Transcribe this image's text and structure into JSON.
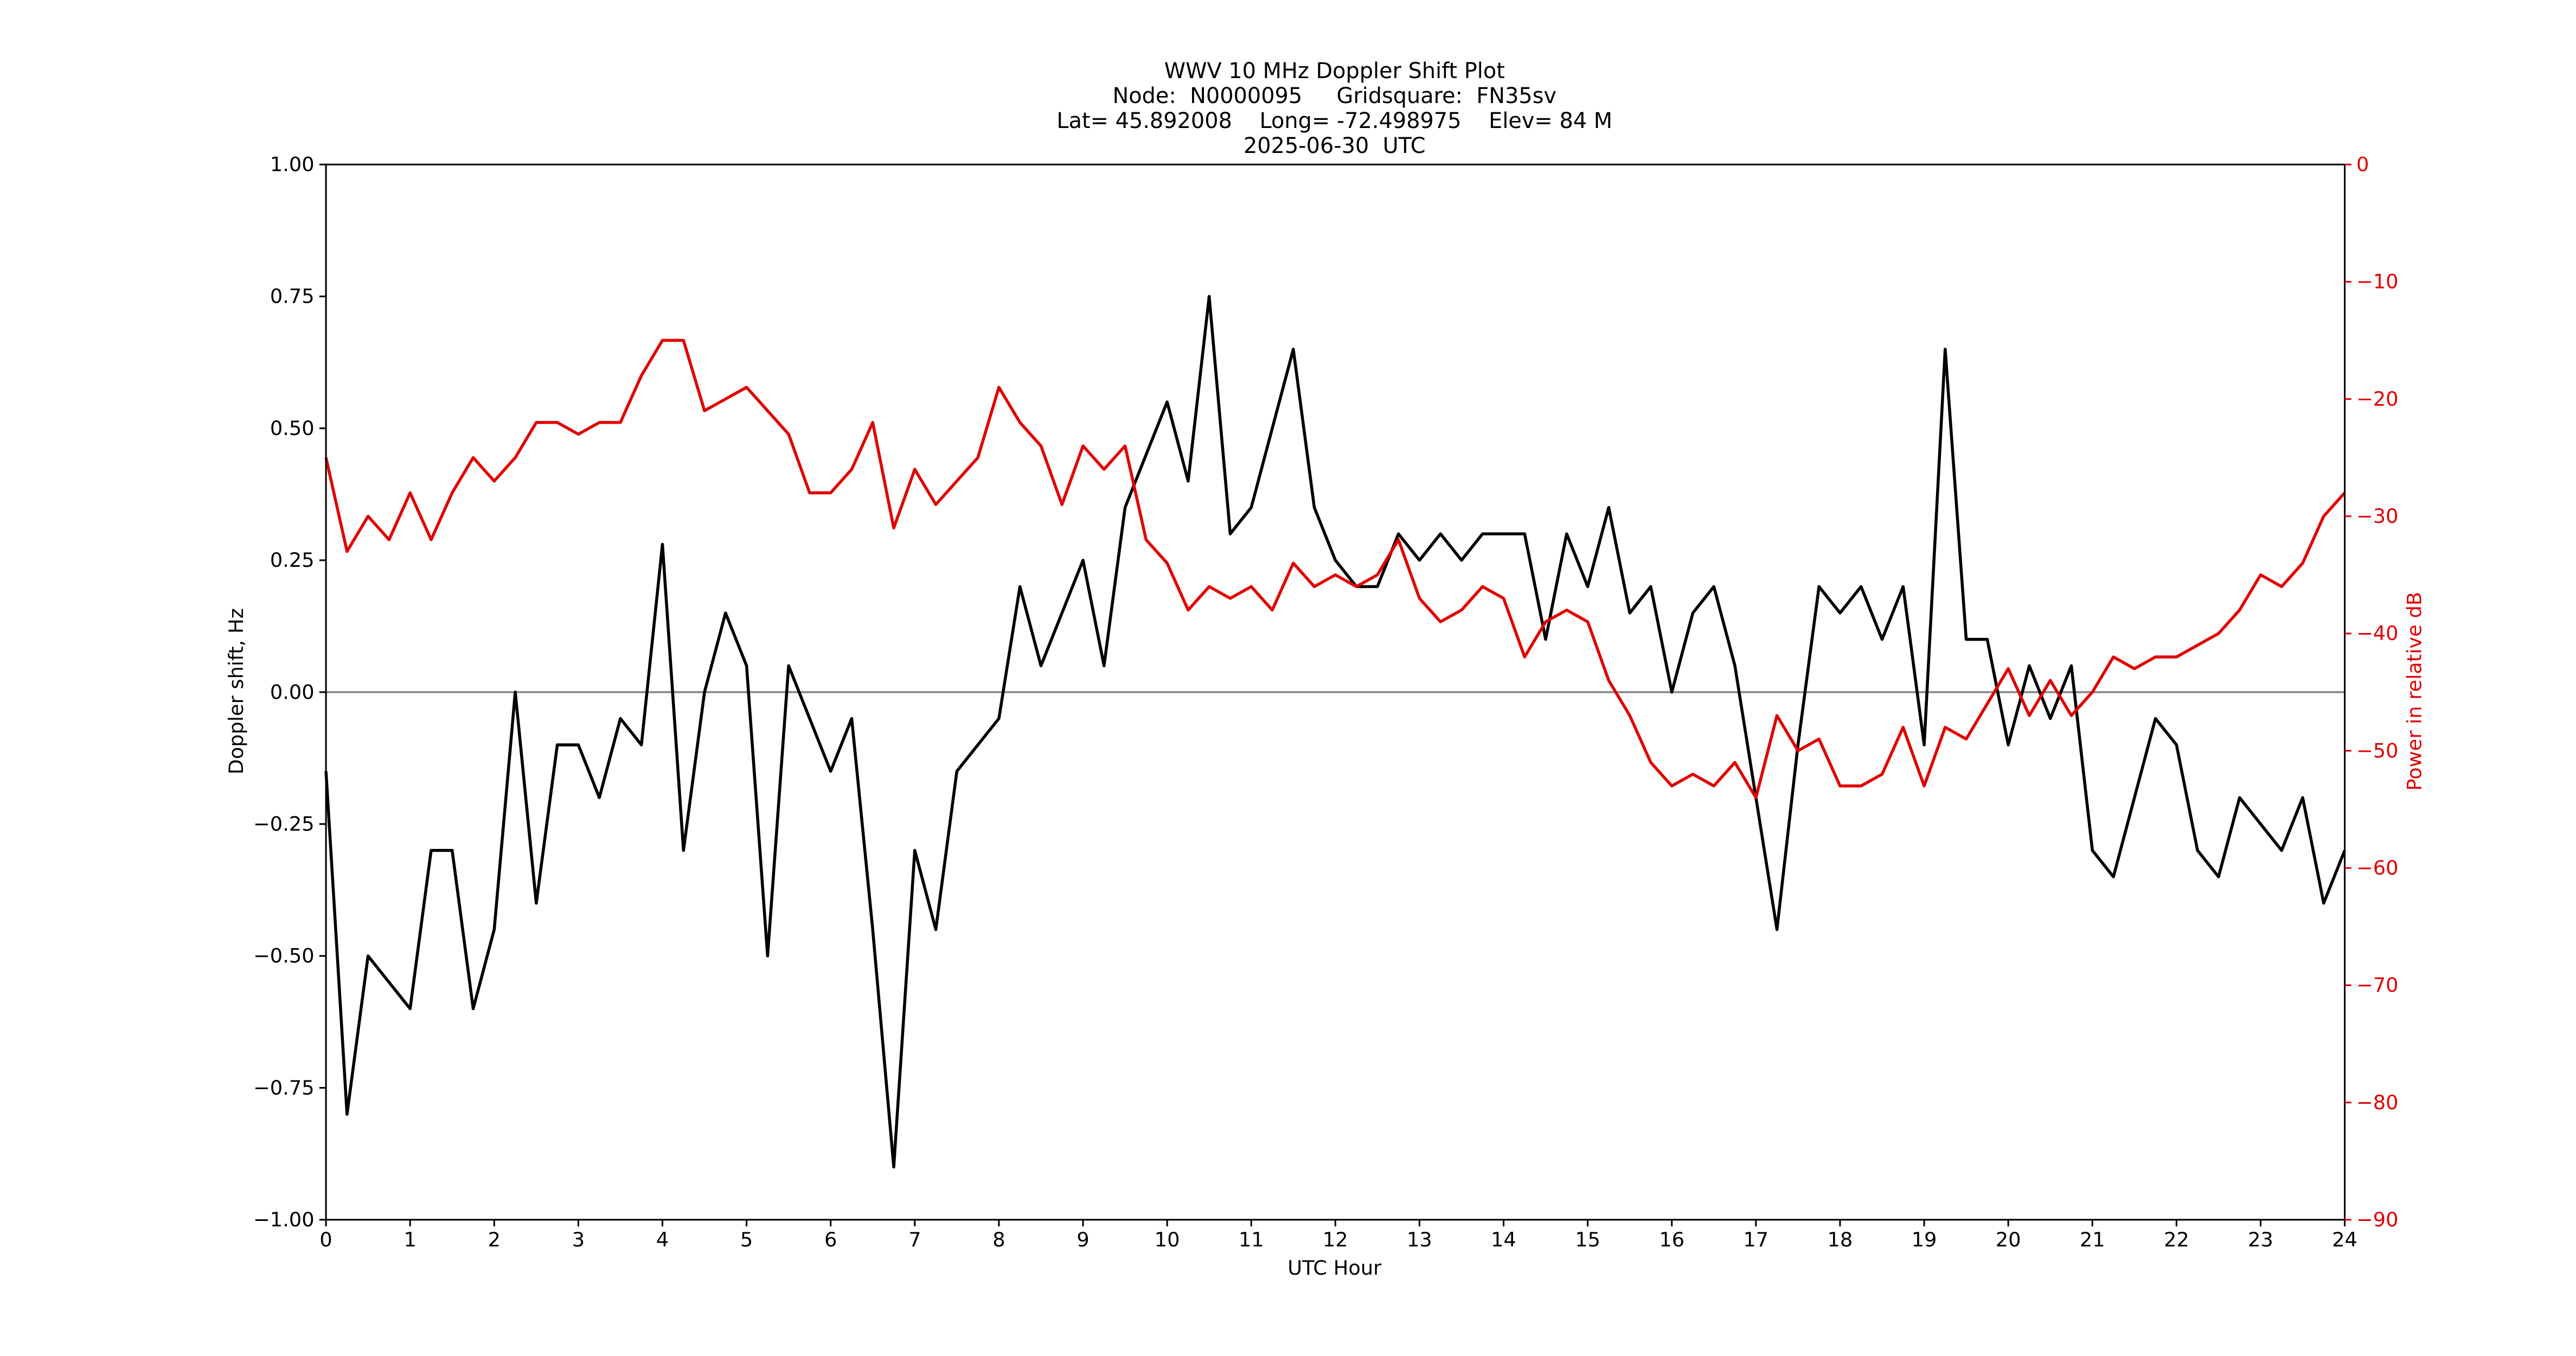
{
  "chart_data": {
    "type": "line",
    "title": "WWV 10 MHz Doppler Shift Plot",
    "subtitle": [
      "Node:  N0000095     Gridsquare:  FN35sv",
      "Lat= 45.892008    Long= -72.498975    Elev= 84 M",
      "2025-06-30  UTC"
    ],
    "xlabel": "UTC Hour",
    "ylabel": "Doppler shift, Hz",
    "y2label": "Power in relative dB",
    "xlim": [
      0,
      24
    ],
    "xticks": [
      0,
      1,
      2,
      3,
      4,
      5,
      6,
      7,
      8,
      9,
      10,
      11,
      12,
      13,
      14,
      15,
      16,
      17,
      18,
      19,
      20,
      21,
      22,
      23,
      24
    ],
    "ylim": [
      -1,
      1
    ],
    "yticks": [
      {
        "value": -1,
        "label": "−1.00"
      },
      {
        "value": -0.75,
        "label": "−0.75"
      },
      {
        "value": -0.5,
        "label": "−0.50"
      },
      {
        "value": -0.25,
        "label": "−0.25"
      },
      {
        "value": 0,
        "label": "0.00"
      },
      {
        "value": 0.25,
        "label": "0.25"
      },
      {
        "value": 0.5,
        "label": "0.50"
      },
      {
        "value": 0.75,
        "label": "0.75"
      },
      {
        "value": 1,
        "label": "1.00"
      }
    ],
    "y2lim": [
      -90,
      0
    ],
    "y2ticks": [
      {
        "value": -90,
        "label": "−90"
      },
      {
        "value": -80,
        "label": "−80"
      },
      {
        "value": -70,
        "label": "−70"
      },
      {
        "value": -60,
        "label": "−60"
      },
      {
        "value": -50,
        "label": "−50"
      },
      {
        "value": -40,
        "label": "−40"
      },
      {
        "value": -30,
        "label": "−30"
      },
      {
        "value": -20,
        "label": "−20"
      },
      {
        "value": -10,
        "label": "−10"
      },
      0
    ],
    "y2color": "#e00000",
    "hline": 0,
    "hline_color": "#888888",
    "x": [
      0,
      0.25,
      0.5,
      0.75,
      1,
      1.25,
      1.5,
      1.75,
      2,
      2.25,
      2.5,
      2.75,
      3,
      3.25,
      3.5,
      3.75,
      4,
      4.25,
      4.5,
      4.75,
      5,
      5.25,
      5.5,
      5.75,
      6,
      6.25,
      6.5,
      6.75,
      7,
      7.25,
      7.5,
      7.75,
      8,
      8.25,
      8.5,
      8.75,
      9,
      9.25,
      9.5,
      9.75,
      10,
      10.25,
      10.5,
      10.75,
      11,
      11.25,
      11.5,
      11.75,
      12,
      12.25,
      12.5,
      12.75,
      13,
      13.25,
      13.5,
      13.75,
      14,
      14.25,
      14.5,
      14.75,
      15,
      15.25,
      15.5,
      15.75,
      16,
      16.25,
      16.5,
      16.75,
      17,
      17.25,
      17.5,
      17.75,
      18,
      18.25,
      18.5,
      18.75,
      19,
      19.25,
      19.5,
      19.75,
      20,
      20.25,
      20.5,
      20.75,
      21,
      21.25,
      21.5,
      21.75,
      22,
      22.25,
      22.5,
      22.75,
      23,
      23.25,
      23.5,
      23.75,
      24
    ],
    "series": [
      {
        "name": "Doppler shift",
        "color": "#000000",
        "axis": "y",
        "values": [
          -0.15,
          -0.8,
          -0.5,
          -0.55,
          -0.6,
          -0.3,
          -0.3,
          -0.6,
          -0.45,
          0.0,
          -0.4,
          -0.1,
          -0.1,
          -0.2,
          -0.05,
          -0.1,
          0.28,
          -0.3,
          0.0,
          0.15,
          0.05,
          -0.5,
          0.05,
          -0.05,
          -0.15,
          -0.05,
          -0.45,
          -0.9,
          -0.3,
          -0.45,
          -0.15,
          -0.1,
          -0.05,
          0.2,
          0.05,
          0.15,
          0.25,
          0.05,
          0.35,
          0.45,
          0.55,
          0.4,
          0.75,
          0.3,
          0.35,
          0.5,
          0.65,
          0.35,
          0.25,
          0.2,
          0.2,
          0.3,
          0.25,
          0.3,
          0.25,
          0.3,
          0.3,
          0.3,
          0.1,
          0.3,
          0.2,
          0.35,
          0.15,
          0.2,
          0.0,
          0.15,
          0.2,
          0.05,
          -0.2,
          -0.45,
          -0.1,
          0.2,
          0.15,
          0.2,
          0.1,
          0.2,
          -0.1,
          0.65,
          0.1,
          0.1,
          -0.1,
          0.05,
          -0.05,
          0.05,
          -0.3,
          -0.35,
          -0.2,
          -0.05,
          -0.1,
          -0.3,
          -0.35,
          -0.2,
          -0.25,
          -0.3,
          -0.2,
          -0.4,
          -0.3
        ]
      },
      {
        "name": "Power",
        "color": "#e00000",
        "axis": "y2",
        "values": [
          -25,
          -33,
          -30,
          -32,
          -28,
          -32,
          -28,
          -25,
          -27,
          -25,
          -22,
          -22,
          -23,
          -22,
          -22,
          -18,
          -15,
          -15,
          -21,
          -20,
          -19,
          -21,
          -23,
          -28,
          -28,
          -26,
          -22,
          -31,
          -26,
          -29,
          -27,
          -25,
          -19,
          -22,
          -24,
          -29,
          -24,
          -26,
          -24,
          -32,
          -34,
          -38,
          -36,
          -37,
          -36,
          -38,
          -34,
          -36,
          -35,
          -36,
          -35,
          -32,
          -37,
          -39,
          -38,
          -36,
          -37,
          -42,
          -39,
          -38,
          -39,
          -44,
          -47,
          -51,
          -53,
          -52,
          -53,
          -51,
          -54,
          -47,
          -50,
          -49,
          -53,
          -53,
          -52,
          -48,
          -53,
          -48,
          -49,
          -46,
          -43,
          -47,
          -44,
          -47,
          -45,
          -42,
          -43,
          -42,
          -42,
          -41,
          -40,
          -38,
          -35,
          -36,
          -34,
          -30,
          -28
        ]
      }
    ]
  }
}
